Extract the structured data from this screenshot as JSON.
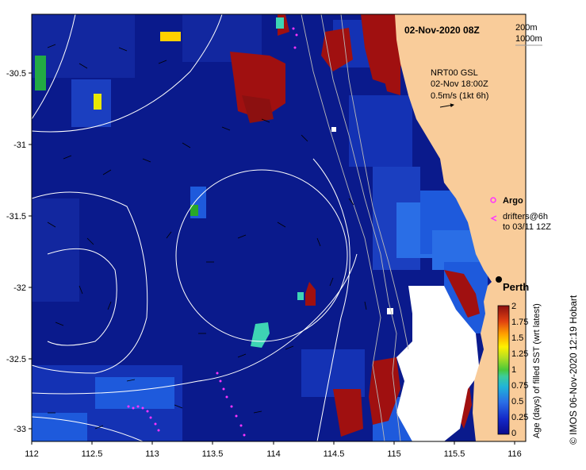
{
  "header": {
    "date_label": "02-Nov-2020 08Z",
    "isobath_short": "200m",
    "isobath_long": "1000m"
  },
  "current_info": {
    "line1": "NRT00 GSL",
    "line2": "02-Nov 18:00Z",
    "line3": "0.5m/s (1kt 6h)"
  },
  "legend": {
    "argo_label": "Argo",
    "drifters_line1": "drifters@6h",
    "drifters_line2": "to 03/11 12Z",
    "city_label": "Perth"
  },
  "colorbar": {
    "title": "Age (days) of filled SST (wrt latest)",
    "ticks": [
      "0",
      "0.25",
      "0.5",
      "0.75",
      "1",
      "1.25",
      "1.5",
      "1.75",
      "2"
    ]
  },
  "credit": "©  IMOS 06-Nov-2020 12:19 Hobart",
  "axes": {
    "x_ticks": [
      "112",
      "112.5",
      "113",
      "113.5",
      "114",
      "114.5",
      "115",
      "115.5",
      "116"
    ],
    "y_ticks": [
      "-30.5",
      "-31",
      "-31.5",
      "-32",
      "-32.5",
      "-33"
    ],
    "x_range": [
      112,
      116.1
    ],
    "y_range": [
      -33.1,
      -30.05
    ]
  },
  "colors": {
    "ocean_base": "#0a1a8c",
    "ocean_mid": "#1432b4",
    "ocean_light": "#1e5adc",
    "land": "#f9cc9a",
    "stale": "#a01010",
    "aged": "#3ed4b4",
    "argo": "#ff33ff",
    "contour": "#ffffff"
  }
}
